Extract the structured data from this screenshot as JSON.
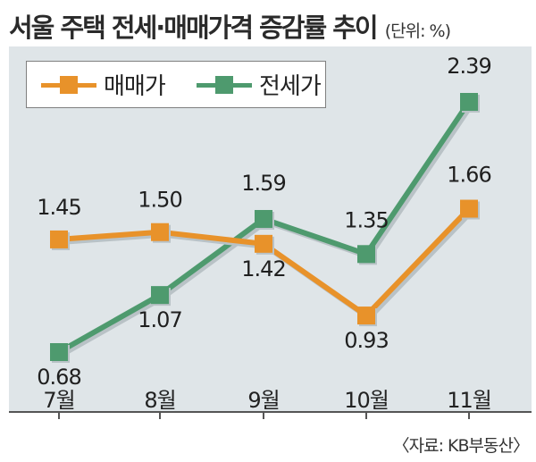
{
  "chart_data": {
    "type": "line",
    "title": "서울 주택 전세·매매가격 증감률 추이",
    "unit": "(단위: %)",
    "categories": [
      "7월",
      "8월",
      "9월",
      "10월",
      "11월"
    ],
    "series": [
      {
        "name": "매매가",
        "color": "#e8922a",
        "values": [
          1.45,
          1.5,
          1.42,
          0.93,
          1.66
        ]
      },
      {
        "name": "전세가",
        "color": "#4e9a6e",
        "values": [
          0.68,
          1.07,
          1.59,
          1.35,
          2.39
        ]
      }
    ],
    "ylim": [
      0.4,
      2.6
    ],
    "grid": false,
    "legend": "top-left",
    "source": "〈자료: KB부동산〉"
  }
}
